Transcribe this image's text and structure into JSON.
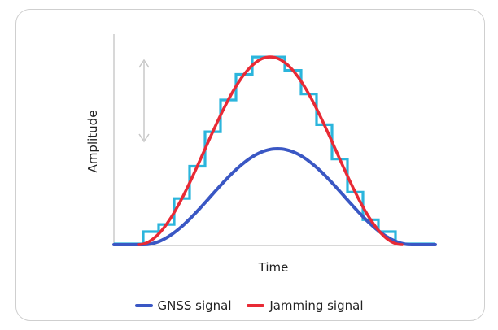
{
  "diagram": {
    "y_axis_label": "Amplitude",
    "x_axis_label": "Time",
    "legend": [
      {
        "label": "GNSS signal",
        "color": "#3a57c4"
      },
      {
        "label": "Jamming signal",
        "color": "#e82a35"
      }
    ],
    "colors": {
      "gnss": "#3a57c4",
      "jamming": "#e82a35",
      "step_signal": "#2bb5dc",
      "axis": "#cccccc",
      "arrow": "#c8c8c8",
      "card_border": "#cfcfcf"
    }
  }
}
